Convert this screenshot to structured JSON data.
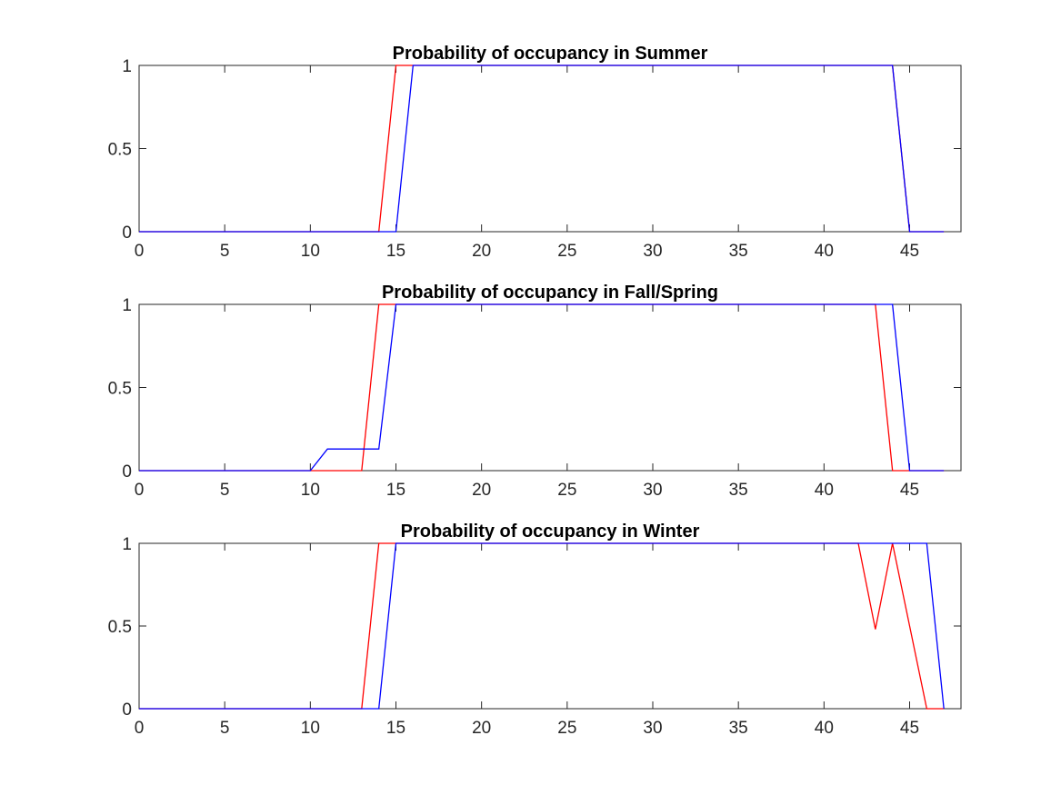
{
  "colors": {
    "series_red": "#ff0000",
    "series_blue": "#0000ff",
    "axis": "#262626",
    "background": "#ffffff"
  },
  "chart_data": [
    {
      "type": "line",
      "title": "Probability of occupancy in Summer",
      "xlim": [
        0,
        48
      ],
      "ylim": [
        0,
        1
      ],
      "xticks": [
        0,
        5,
        10,
        15,
        20,
        25,
        30,
        35,
        40,
        45
      ],
      "yticks": [
        0,
        0.5,
        1
      ],
      "xtick_labels": [
        "0",
        "5",
        "10",
        "15",
        "20",
        "25",
        "30",
        "35",
        "40",
        "45"
      ],
      "ytick_labels": [
        "0",
        "0.5",
        "1"
      ],
      "series": [
        {
          "color": "#ff0000",
          "x": [
            0,
            14,
            15,
            44,
            45,
            47
          ],
          "y": [
            0,
            0,
            1,
            1,
            0,
            0
          ]
        },
        {
          "color": "#0000ff",
          "x": [
            0,
            15,
            16,
            44,
            45,
            47
          ],
          "y": [
            0,
            0,
            1,
            1,
            0,
            0
          ]
        }
      ]
    },
    {
      "type": "line",
      "title": "Probability of occupancy in Fall/Spring",
      "xlim": [
        0,
        48
      ],
      "ylim": [
        0,
        1
      ],
      "xticks": [
        0,
        5,
        10,
        15,
        20,
        25,
        30,
        35,
        40,
        45
      ],
      "yticks": [
        0,
        0.5,
        1
      ],
      "xtick_labels": [
        "0",
        "5",
        "10",
        "15",
        "20",
        "25",
        "30",
        "35",
        "40",
        "45"
      ],
      "ytick_labels": [
        "0",
        "0.5",
        "1"
      ],
      "series": [
        {
          "color": "#ff0000",
          "x": [
            0,
            13,
            14,
            43,
            44,
            47
          ],
          "y": [
            0,
            0,
            1,
            1,
            0,
            0
          ]
        },
        {
          "color": "#0000ff",
          "x": [
            0,
            10,
            11,
            14,
            15,
            44,
            45,
            47
          ],
          "y": [
            0,
            0,
            0.13,
            0.13,
            1,
            1,
            0,
            0
          ]
        }
      ]
    },
    {
      "type": "line",
      "title": "Probability of occupancy in Winter",
      "xlim": [
        0,
        48
      ],
      "ylim": [
        0,
        1
      ],
      "xticks": [
        0,
        5,
        10,
        15,
        20,
        25,
        30,
        35,
        40,
        45
      ],
      "yticks": [
        0,
        0.5,
        1
      ],
      "xtick_labels": [
        "0",
        "5",
        "10",
        "15",
        "20",
        "25",
        "30",
        "35",
        "40",
        "45"
      ],
      "ytick_labels": [
        "0",
        "0.5",
        "1"
      ],
      "series": [
        {
          "color": "#ff0000",
          "x": [
            0,
            13,
            14,
            42,
            43,
            44,
            46,
            47
          ],
          "y": [
            0,
            0,
            1,
            1,
            0.48,
            1,
            0,
            0
          ]
        },
        {
          "color": "#0000ff",
          "x": [
            0,
            14,
            15,
            46,
            47
          ],
          "y": [
            0,
            0,
            1,
            1,
            0
          ]
        }
      ]
    }
  ]
}
